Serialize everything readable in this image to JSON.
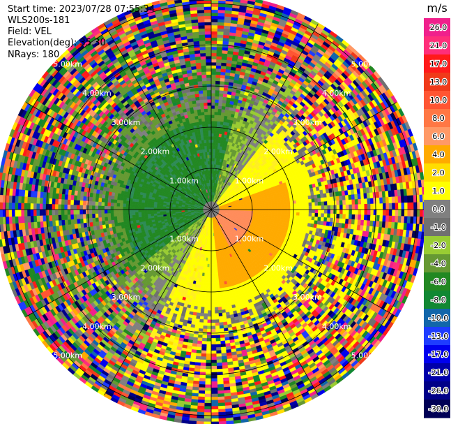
{
  "header": {
    "start_time": "Start time: 2023/07/28 07:55:34",
    "instrument": "WLS200s-181",
    "field": "Field: VEL",
    "elevation": "Elevation(deg): 35.30",
    "nrays": "NRays: 180"
  },
  "chart_data": {
    "type": "heatmap",
    "projection": "polar (PPI)",
    "ranges_km": [
      1,
      2,
      3,
      4,
      5
    ],
    "range_labels": [
      "1.00km",
      "2.00km",
      "3.00km",
      "4.00km",
      "5.00km"
    ],
    "azimuth_spokes_deg": [
      0,
      30,
      60,
      90,
      120,
      150,
      180,
      210,
      240,
      270,
      300,
      330
    ],
    "colorbar": {
      "unit": "m/s",
      "ticks": [
        "26.0",
        "21.0",
        "17.0",
        "13.0",
        "10.0",
        "8.0",
        "6.0",
        "4.0",
        "2.0",
        "1.0",
        "0.0",
        "-1.0",
        "-2.0",
        "-4.0",
        "-6.0",
        "-8.0",
        "-10.0",
        "-13.0",
        "-17.0",
        "-21.0",
        "-26.0",
        "-30.0"
      ],
      "colors": [
        "#f0208c",
        "#ff2e7a",
        "#ff1a1a",
        "#f03a1a",
        "#ff5533",
        "#ff7744",
        "#ff9966",
        "#ffaa00",
        "#ffdd00",
        "#ffff00",
        "#808080",
        "#707070",
        "#99cc33",
        "#669933",
        "#228822",
        "#118833",
        "#1166aa",
        "#1e3cff",
        "#0000ee",
        "#0000aa",
        "#000088",
        "#000055"
      ]
    }
  }
}
